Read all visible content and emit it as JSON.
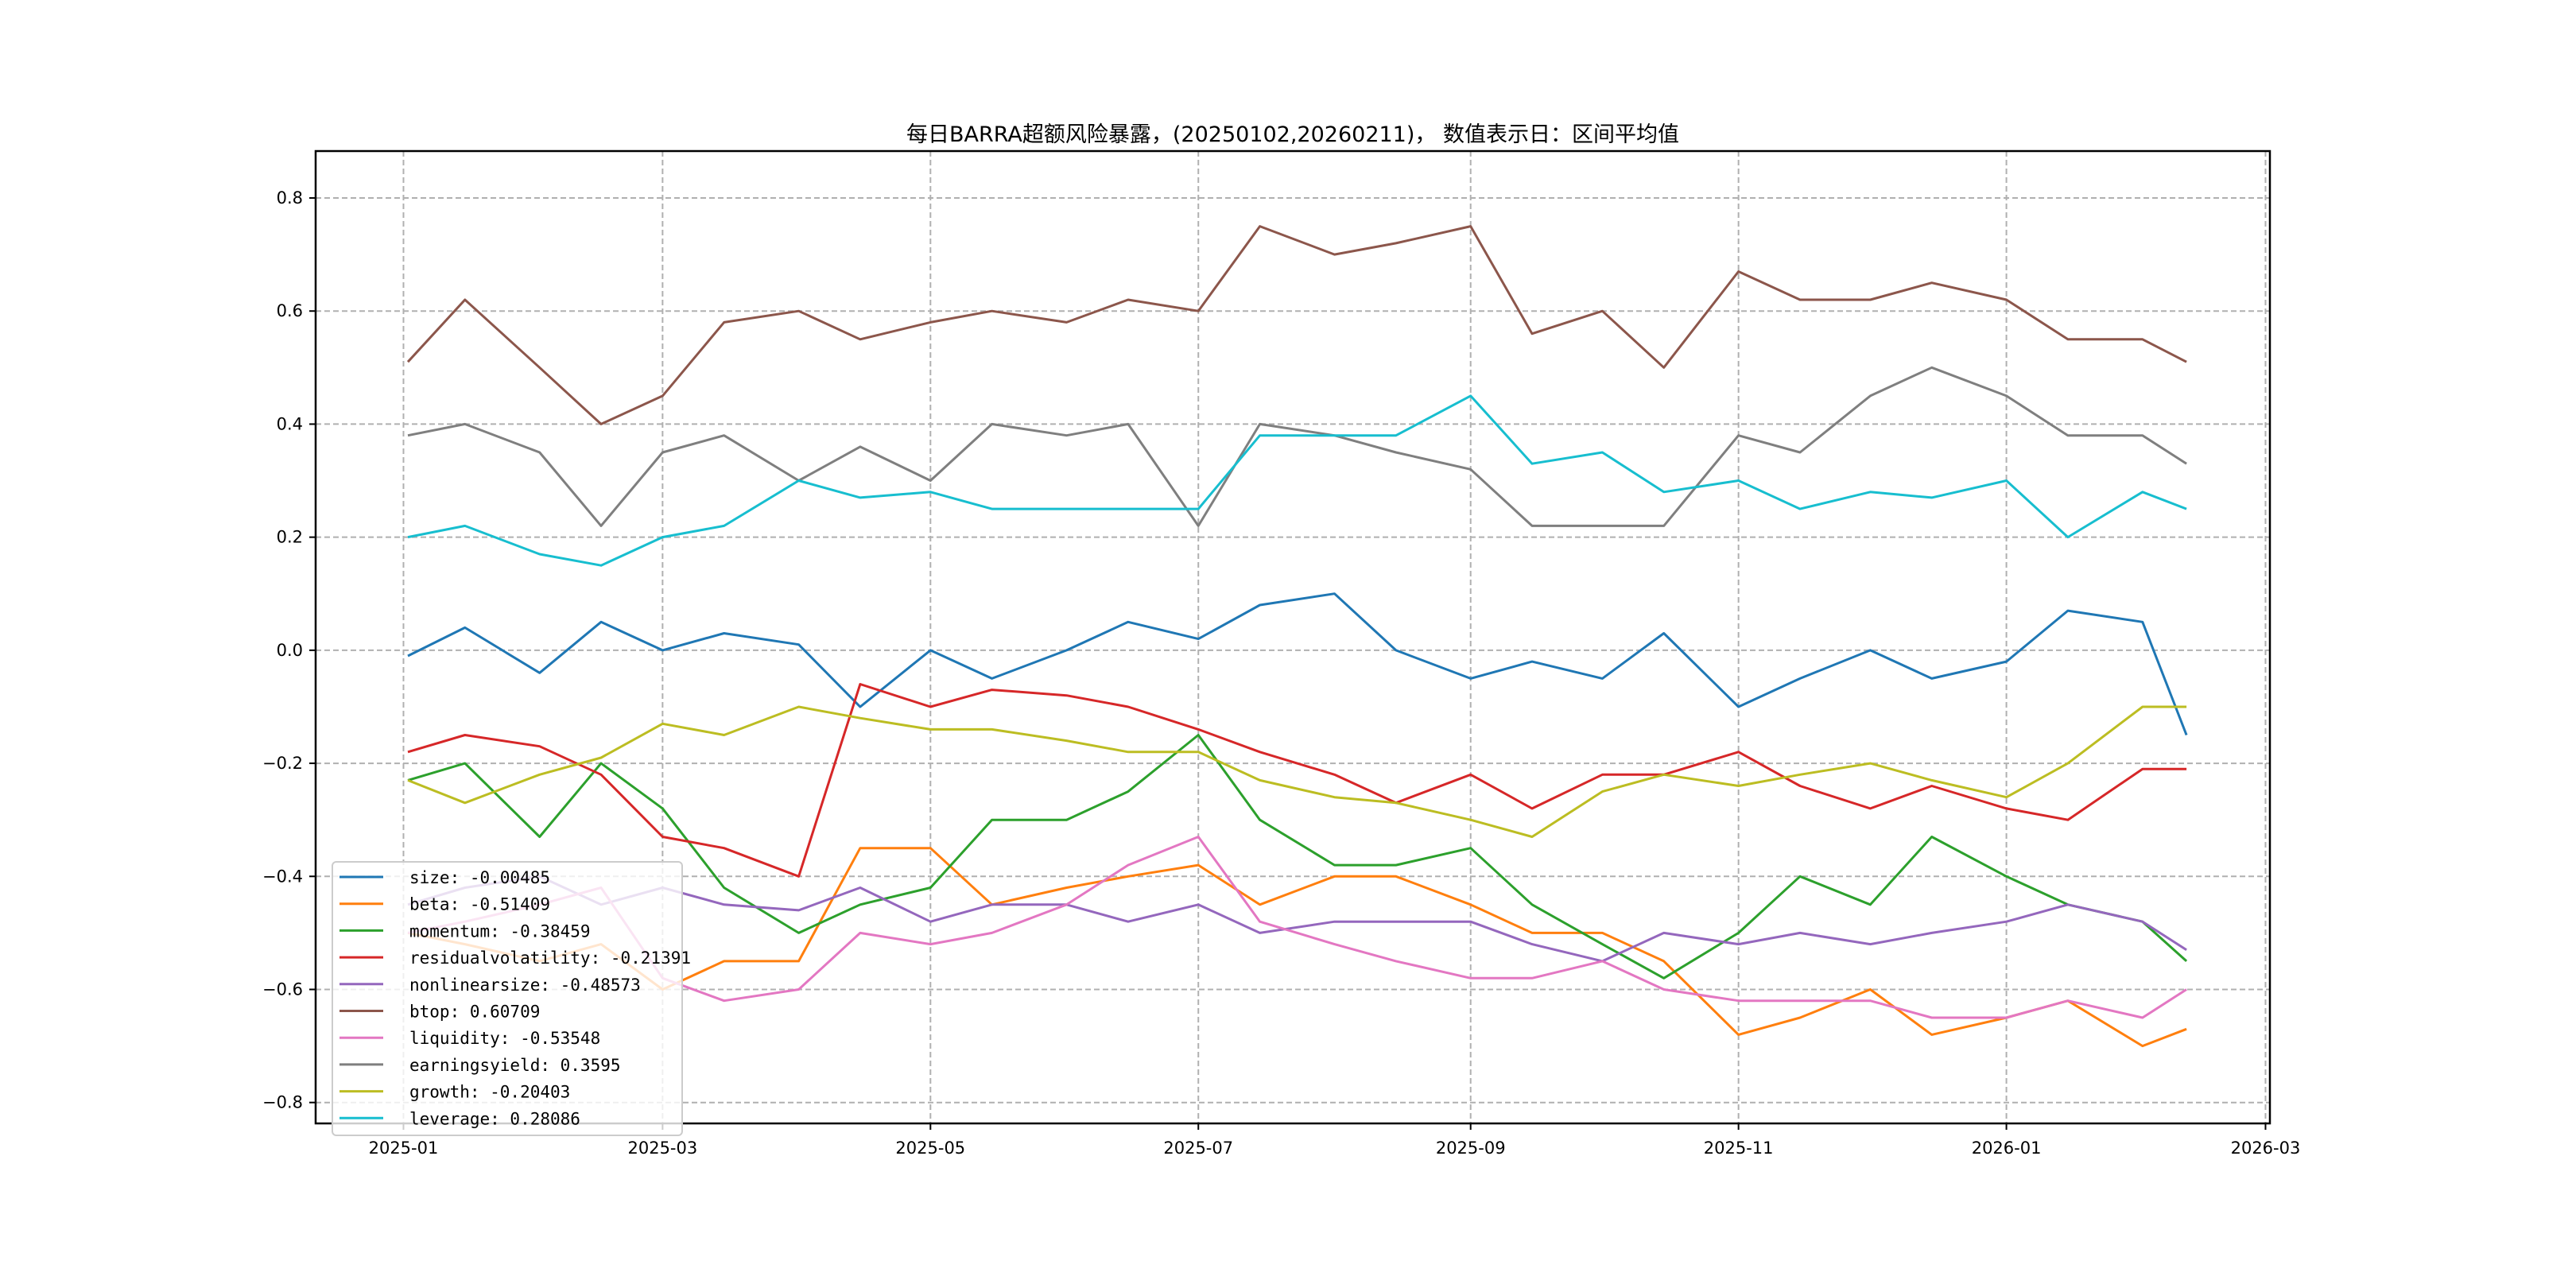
{
  "chart_data": {
    "type": "line",
    "title": "每日BARRA超额风险暴露，(20250102,20260211)， 数值表示日：区间平均值",
    "xlabel": "",
    "ylabel": "",
    "grid": true,
    "legend_position": "lower-left",
    "ylim": [
      -0.837,
      0.883
    ],
    "xlim": [
      "2024-12-12",
      "2026-03-02"
    ],
    "yticks": [
      -0.8,
      -0.6,
      -0.4,
      -0.2,
      0.0,
      0.2,
      0.4,
      0.6,
      0.8
    ],
    "ytick_labels": [
      "−0.8",
      "−0.6",
      "−0.4",
      "−0.2",
      "0.0",
      "0.2",
      "0.4",
      "0.6",
      "0.8"
    ],
    "xticks": [
      "2025-01-01",
      "2025-03-01",
      "2025-05-01",
      "2025-07-01",
      "2025-09-01",
      "2025-11-01",
      "2026-01-01",
      "2026-03-01"
    ],
    "xtick_labels": [
      "2025-01",
      "2025-03",
      "2025-05",
      "2025-07",
      "2025-09",
      "2025-11",
      "2026-01",
      "2026-03"
    ],
    "x": [
      "2025-01-02",
      "2025-01-15",
      "2025-02-01",
      "2025-02-15",
      "2025-03-01",
      "2025-03-15",
      "2025-04-01",
      "2025-04-15",
      "2025-05-01",
      "2025-05-15",
      "2025-06-01",
      "2025-06-15",
      "2025-07-01",
      "2025-07-15",
      "2025-08-01",
      "2025-08-15",
      "2025-09-01",
      "2025-09-15",
      "2025-10-01",
      "2025-10-15",
      "2025-11-01",
      "2025-11-15",
      "2025-12-01",
      "2025-12-15",
      "2026-01-01",
      "2026-01-15",
      "2026-02-01",
      "2026-02-11"
    ],
    "series": [
      {
        "name": "size",
        "legend": "size: -0.00485",
        "color": "#1f77b4",
        "values": [
          -0.01,
          0.04,
          -0.04,
          0.05,
          0.0,
          0.03,
          0.01,
          -0.1,
          0.0,
          -0.05,
          0.0,
          0.05,
          0.02,
          0.08,
          0.1,
          0.0,
          -0.05,
          -0.02,
          -0.05,
          0.03,
          -0.1,
          -0.05,
          0.0,
          -0.05,
          -0.02,
          0.07,
          0.05,
          -0.15
        ]
      },
      {
        "name": "beta",
        "legend": "beta: -0.51409",
        "color": "#ff7f0e",
        "values": [
          -0.5,
          -0.52,
          -0.55,
          -0.52,
          -0.6,
          -0.55,
          -0.55,
          -0.35,
          -0.35,
          -0.45,
          -0.42,
          -0.4,
          -0.38,
          -0.45,
          -0.4,
          -0.4,
          -0.45,
          -0.5,
          -0.5,
          -0.55,
          -0.68,
          -0.65,
          -0.6,
          -0.68,
          -0.65,
          -0.62,
          -0.7,
          -0.67
        ]
      },
      {
        "name": "momentum",
        "legend": "momentum: -0.38459",
        "color": "#2ca02c",
        "values": [
          -0.23,
          -0.2,
          -0.33,
          -0.2,
          -0.28,
          -0.42,
          -0.5,
          -0.45,
          -0.42,
          -0.3,
          -0.3,
          -0.25,
          -0.15,
          -0.3,
          -0.38,
          -0.38,
          -0.35,
          -0.45,
          -0.52,
          -0.58,
          -0.5,
          -0.4,
          -0.45,
          -0.33,
          -0.4,
          -0.45,
          -0.48,
          -0.55
        ]
      },
      {
        "name": "residualvolatility",
        "legend": "residualvolatility: -0.21391",
        "color": "#d62728",
        "values": [
          -0.18,
          -0.15,
          -0.17,
          -0.22,
          -0.33,
          -0.35,
          -0.4,
          -0.06,
          -0.1,
          -0.07,
          -0.08,
          -0.1,
          -0.14,
          -0.18,
          -0.22,
          -0.27,
          -0.22,
          -0.28,
          -0.22,
          -0.22,
          -0.18,
          -0.24,
          -0.28,
          -0.24,
          -0.28,
          -0.3,
          -0.21,
          -0.21
        ]
      },
      {
        "name": "nonlinearsize",
        "legend": "nonlinearsize: -0.48573",
        "color": "#9467bd",
        "values": [
          -0.45,
          -0.42,
          -0.4,
          -0.45,
          -0.42,
          -0.45,
          -0.46,
          -0.42,
          -0.48,
          -0.45,
          -0.45,
          -0.48,
          -0.45,
          -0.5,
          -0.48,
          -0.48,
          -0.48,
          -0.52,
          -0.55,
          -0.5,
          -0.52,
          -0.5,
          -0.52,
          -0.5,
          -0.48,
          -0.45,
          -0.48,
          -0.53
        ]
      },
      {
        "name": "btop",
        "legend": "btop: 0.60709",
        "color": "#8c564b",
        "values": [
          0.51,
          0.62,
          0.5,
          0.4,
          0.45,
          0.58,
          0.6,
          0.55,
          0.58,
          0.6,
          0.58,
          0.62,
          0.6,
          0.75,
          0.7,
          0.72,
          0.75,
          0.56,
          0.6,
          0.5,
          0.67,
          0.62,
          0.62,
          0.65,
          0.62,
          0.55,
          0.55,
          0.51
        ]
      },
      {
        "name": "liquidity",
        "legend": "liquidity: -0.53548",
        "color": "#e377c2",
        "values": [
          -0.5,
          -0.48,
          -0.45,
          -0.42,
          -0.58,
          -0.62,
          -0.6,
          -0.5,
          -0.52,
          -0.5,
          -0.45,
          -0.38,
          -0.33,
          -0.48,
          -0.52,
          -0.55,
          -0.58,
          -0.58,
          -0.55,
          -0.6,
          -0.62,
          -0.62,
          -0.62,
          -0.65,
          -0.65,
          -0.62,
          -0.65,
          -0.6
        ]
      },
      {
        "name": "earningsyield",
        "legend": "earningsyield: 0.3595",
        "color": "#7f7f7f",
        "values": [
          0.38,
          0.4,
          0.35,
          0.22,
          0.35,
          0.38,
          0.3,
          0.36,
          0.3,
          0.4,
          0.38,
          0.4,
          0.22,
          0.4,
          0.38,
          0.35,
          0.32,
          0.22,
          0.22,
          0.22,
          0.38,
          0.35,
          0.45,
          0.5,
          0.45,
          0.38,
          0.38,
          0.33
        ]
      },
      {
        "name": "growth",
        "legend": "growth: -0.20403",
        "color": "#bcbd22",
        "values": [
          -0.23,
          -0.27,
          -0.22,
          -0.19,
          -0.13,
          -0.15,
          -0.1,
          -0.12,
          -0.14,
          -0.14,
          -0.16,
          -0.18,
          -0.18,
          -0.23,
          -0.26,
          -0.27,
          -0.3,
          -0.33,
          -0.25,
          -0.22,
          -0.24,
          -0.22,
          -0.2,
          -0.23,
          -0.26,
          -0.2,
          -0.1,
          -0.1
        ]
      },
      {
        "name": "leverage",
        "legend": "leverage: 0.28086",
        "color": "#17becf",
        "values": [
          0.2,
          0.22,
          0.17,
          0.15,
          0.2,
          0.22,
          0.3,
          0.27,
          0.28,
          0.25,
          0.25,
          0.25,
          0.25,
          0.38,
          0.38,
          0.38,
          0.45,
          0.33,
          0.35,
          0.28,
          0.3,
          0.25,
          0.28,
          0.27,
          0.3,
          0.2,
          0.28,
          0.25
        ]
      }
    ]
  }
}
